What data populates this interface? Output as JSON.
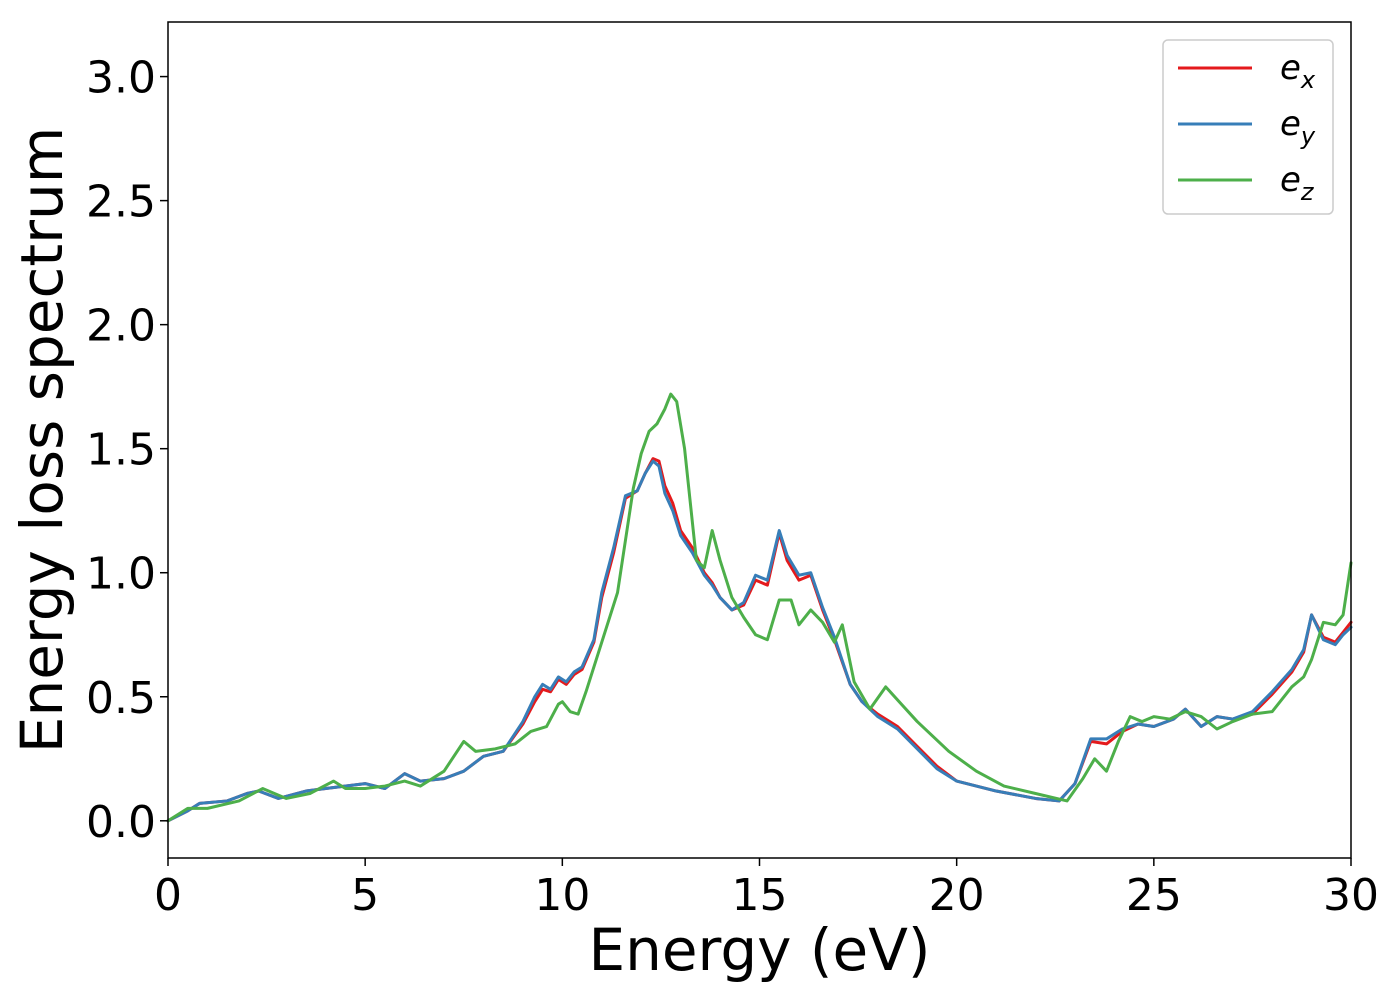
{
  "chart_data": {
    "type": "line",
    "xlabel": "Energy (eV)",
    "ylabel": "Energy loss spectrum",
    "xlim": [
      0,
      30
    ],
    "ylim": [
      -0.15,
      3.22
    ],
    "xticks": [
      0,
      5,
      10,
      15,
      20,
      25,
      30
    ],
    "xtick_labels": [
      "0",
      "5",
      "10",
      "15",
      "20",
      "25",
      "30"
    ],
    "yticks": [
      0.0,
      0.5,
      1.0,
      1.5,
      2.0,
      2.5,
      3.0
    ],
    "ytick_labels": [
      "0.0",
      "0.5",
      "1.0",
      "1.5",
      "2.0",
      "2.5",
      "3.0"
    ],
    "grid": false,
    "legend_position": "top-right",
    "series": [
      {
        "name": "e_x",
        "label_base": "e",
        "label_sub": "x",
        "color": "#e41a1c",
        "x": [
          0,
          0.5,
          0.8,
          1.5,
          2.0,
          2.3,
          2.8,
          3.5,
          4.0,
          5.0,
          5.5,
          6.0,
          6.4,
          7.0,
          7.5,
          8.0,
          8.5,
          9.0,
          9.3,
          9.5,
          9.7,
          9.9,
          10.1,
          10.3,
          10.5,
          10.8,
          11.0,
          11.3,
          11.6,
          11.9,
          12.1,
          12.3,
          12.45,
          12.6,
          12.8,
          13.0,
          13.3,
          13.6,
          13.8,
          14.0,
          14.3,
          14.6,
          14.9,
          15.2,
          15.5,
          15.7,
          16.0,
          16.3,
          16.6,
          16.9,
          17.3,
          17.6,
          18.0,
          18.5,
          19.0,
          19.5,
          20.0,
          21.0,
          22.0,
          22.6,
          23.0,
          23.4,
          23.8,
          24.2,
          24.6,
          25.0,
          25.5,
          25.8,
          26.2,
          26.6,
          27.0,
          27.5,
          28.0,
          28.5,
          28.8,
          29.0,
          29.3,
          29.6,
          29.8,
          30.0
        ],
        "y": [
          0.0,
          0.04,
          0.07,
          0.08,
          0.11,
          0.12,
          0.09,
          0.12,
          0.13,
          0.15,
          0.13,
          0.19,
          0.16,
          0.17,
          0.2,
          0.26,
          0.28,
          0.39,
          0.48,
          0.53,
          0.52,
          0.57,
          0.55,
          0.59,
          0.61,
          0.72,
          0.9,
          1.08,
          1.3,
          1.33,
          1.4,
          1.46,
          1.45,
          1.35,
          1.28,
          1.17,
          1.1,
          1.0,
          0.96,
          0.9,
          0.85,
          0.87,
          0.97,
          0.95,
          1.16,
          1.05,
          0.97,
          0.99,
          0.85,
          0.73,
          0.55,
          0.48,
          0.43,
          0.38,
          0.3,
          0.22,
          0.16,
          0.12,
          0.09,
          0.08,
          0.15,
          0.32,
          0.31,
          0.36,
          0.39,
          0.38,
          0.41,
          0.45,
          0.38,
          0.42,
          0.41,
          0.43,
          0.51,
          0.6,
          0.68,
          0.83,
          0.74,
          0.72,
          0.76,
          0.8
        ]
      },
      {
        "name": "e_y",
        "label_base": "e",
        "label_sub": "y",
        "color": "#377eb8",
        "x": [
          0,
          0.5,
          0.8,
          1.5,
          2.0,
          2.3,
          2.8,
          3.5,
          4.0,
          5.0,
          5.5,
          6.0,
          6.4,
          7.0,
          7.5,
          8.0,
          8.5,
          9.0,
          9.3,
          9.5,
          9.7,
          9.9,
          10.1,
          10.3,
          10.5,
          10.8,
          11.0,
          11.3,
          11.6,
          11.9,
          12.1,
          12.3,
          12.45,
          12.6,
          12.8,
          13.0,
          13.3,
          13.6,
          13.8,
          14.0,
          14.3,
          14.6,
          14.9,
          15.2,
          15.5,
          15.7,
          16.0,
          16.3,
          16.6,
          16.9,
          17.3,
          17.6,
          18.0,
          18.5,
          19.0,
          19.5,
          20.0,
          21.0,
          22.0,
          22.6,
          23.0,
          23.4,
          23.8,
          24.2,
          24.6,
          25.0,
          25.5,
          25.8,
          26.2,
          26.6,
          27.0,
          27.5,
          28.0,
          28.5,
          28.8,
          29.0,
          29.3,
          29.6,
          29.8,
          30.0
        ],
        "y": [
          0.0,
          0.04,
          0.07,
          0.08,
          0.11,
          0.12,
          0.09,
          0.12,
          0.13,
          0.15,
          0.13,
          0.19,
          0.16,
          0.17,
          0.2,
          0.26,
          0.28,
          0.4,
          0.5,
          0.55,
          0.53,
          0.58,
          0.56,
          0.6,
          0.62,
          0.73,
          0.92,
          1.1,
          1.31,
          1.33,
          1.4,
          1.45,
          1.43,
          1.32,
          1.25,
          1.15,
          1.08,
          0.99,
          0.95,
          0.9,
          0.85,
          0.88,
          0.99,
          0.97,
          1.17,
          1.07,
          0.99,
          1.0,
          0.86,
          0.74,
          0.55,
          0.48,
          0.42,
          0.37,
          0.29,
          0.21,
          0.16,
          0.12,
          0.09,
          0.08,
          0.15,
          0.33,
          0.33,
          0.37,
          0.39,
          0.38,
          0.41,
          0.45,
          0.38,
          0.42,
          0.41,
          0.44,
          0.52,
          0.61,
          0.69,
          0.83,
          0.73,
          0.71,
          0.75,
          0.78
        ]
      },
      {
        "name": "e_z",
        "label_base": "e",
        "label_sub": "z",
        "color": "#4daf4a",
        "x": [
          0,
          0.5,
          1.0,
          1.8,
          2.4,
          3.0,
          3.6,
          4.2,
          4.5,
          5.0,
          5.5,
          6.0,
          6.4,
          7.0,
          7.5,
          7.8,
          8.3,
          8.8,
          9.2,
          9.6,
          9.9,
          10.0,
          10.2,
          10.4,
          10.6,
          11.0,
          11.4,
          11.8,
          12.0,
          12.2,
          12.4,
          12.6,
          12.75,
          12.9,
          13.1,
          13.4,
          13.6,
          13.8,
          14.0,
          14.3,
          14.6,
          14.9,
          15.2,
          15.5,
          15.8,
          16.0,
          16.3,
          16.6,
          16.9,
          17.1,
          17.4,
          17.8,
          18.2,
          18.6,
          19.0,
          19.4,
          19.8,
          20.5,
          21.2,
          22.0,
          22.8,
          23.2,
          23.5,
          23.8,
          24.1,
          24.4,
          24.7,
          25.0,
          25.4,
          25.8,
          26.2,
          26.6,
          27.0,
          27.5,
          28.0,
          28.5,
          28.8,
          29.0,
          29.3,
          29.6,
          29.8,
          30.0
        ],
        "y": [
          0.0,
          0.05,
          0.05,
          0.08,
          0.13,
          0.09,
          0.11,
          0.16,
          0.13,
          0.13,
          0.14,
          0.16,
          0.14,
          0.2,
          0.32,
          0.28,
          0.29,
          0.31,
          0.36,
          0.38,
          0.47,
          0.48,
          0.44,
          0.43,
          0.52,
          0.72,
          0.92,
          1.34,
          1.48,
          1.57,
          1.6,
          1.66,
          1.72,
          1.69,
          1.5,
          1.05,
          1.02,
          1.17,
          1.05,
          0.9,
          0.82,
          0.75,
          0.73,
          0.89,
          0.89,
          0.79,
          0.85,
          0.8,
          0.72,
          0.79,
          0.56,
          0.45,
          0.54,
          0.47,
          0.4,
          0.34,
          0.28,
          0.2,
          0.14,
          0.11,
          0.08,
          0.17,
          0.25,
          0.2,
          0.32,
          0.42,
          0.4,
          0.42,
          0.41,
          0.44,
          0.42,
          0.37,
          0.4,
          0.43,
          0.44,
          0.54,
          0.58,
          0.65,
          0.8,
          0.79,
          0.83,
          1.04
        ]
      }
    ]
  }
}
